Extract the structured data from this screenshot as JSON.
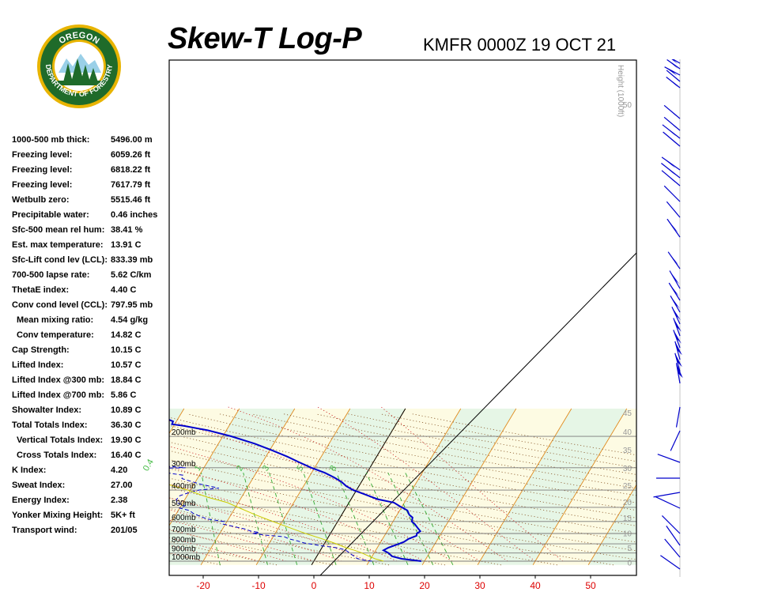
{
  "header": {
    "title": "Skew-T Log-P",
    "station_time": "KMFR 0000Z 19 OCT 21"
  },
  "logo": {
    "top_text": "OREGON",
    "ring_text": "DEPARTMENT OF FORESTRY",
    "colors": {
      "ring": "#1f6b2a",
      "gold": "#e8b400"
    }
  },
  "stats": [
    {
      "label": "1000-500 mb thick:",
      "value": "5496.00 m"
    },
    {
      "label": "Freezing level:",
      "value": "6059.26 ft"
    },
    {
      "label": "Freezing level:",
      "value": "6818.22 ft"
    },
    {
      "label": "Freezing level:",
      "value": "7617.79 ft"
    },
    {
      "label": "Wetbulb zero:",
      "value": "5515.46 ft"
    },
    {
      "label": "Precipitable water:",
      "value": "0.46 inches"
    },
    {
      "label": "Sfc-500 mean rel hum:",
      "value": "38.41 %"
    },
    {
      "label": "Est. max temperature:",
      "value": "13.91 C"
    },
    {
      "label": "Sfc-Lift cond lev (LCL):",
      "value": "833.39 mb"
    },
    {
      "label": "700-500 lapse rate:",
      "value": "5.62 C/km"
    },
    {
      "label": "ThetaE index:",
      "value": "4.40 C"
    },
    {
      "label": "Conv cond level (CCL):",
      "value": "797.95 mb"
    },
    {
      "label": "Mean mixing ratio:",
      "value": "4.54 g/kg",
      "indent": true
    },
    {
      "label": "Conv temperature:",
      "value": "14.82 C",
      "indent": true
    },
    {
      "label": "Cap Strength:",
      "value": "10.15 C"
    },
    {
      "label": "Lifted Index:",
      "value": "10.57 C"
    },
    {
      "label": "Lifted Index @300 mb:",
      "value": "18.84 C"
    },
    {
      "label": "Lifted Index @700 mb:",
      "value": "5.86 C"
    },
    {
      "label": "Showalter Index:",
      "value": "10.89 C"
    },
    {
      "label": "Total Totals Index:",
      "value": "36.30 C"
    },
    {
      "label": "Vertical Totals Index:",
      "value": "19.90 C",
      "indent": true
    },
    {
      "label": "Cross Totals Index:",
      "value": "16.40 C",
      "indent": true
    },
    {
      "label": "K Index:",
      "value": "4.20"
    },
    {
      "label": "Sweat Index:",
      "value": "27.00"
    },
    {
      "label": "Energy Index:",
      "value": "2.38"
    },
    {
      "label": "Yonker Mixing Height:",
      "value": "5K+ ft"
    },
    {
      "label": "Transport wind:",
      "value": "201/05"
    }
  ],
  "chart_data": {
    "type": "line",
    "x_ticks": [
      -20,
      -10,
      0,
      10,
      20,
      30,
      40,
      50
    ],
    "xlim": [
      -27,
      58
    ],
    "ylim_mb": [
      1050,
      140
    ],
    "pressure_labels": [
      {
        "p": 200,
        "label": "200mb"
      },
      {
        "p": 300,
        "label": "300mb"
      },
      {
        "p": 400,
        "label": "400mb"
      },
      {
        "p": 500,
        "label": "500mb"
      },
      {
        "p": 600,
        "label": "600mb"
      },
      {
        "p": 700,
        "label": "700mb"
      },
      {
        "p": 800,
        "label": "800mb"
      },
      {
        "p": 900,
        "label": "900mb"
      },
      {
        "p": 1000,
        "label": "1000mb"
      }
    ],
    "height_axis": {
      "label": "Height (1000ft)",
      "ticks": [
        {
          "p": 1013,
          "label": "0"
        },
        {
          "p": 843,
          "label": "5"
        },
        {
          "p": 697,
          "label": "10"
        },
        {
          "p": 572,
          "label": "15"
        },
        {
          "p": 466,
          "label": "20"
        },
        {
          "p": 376,
          "label": "25"
        },
        {
          "p": 301,
          "label": "30"
        },
        {
          "p": 238,
          "label": "35"
        },
        {
          "p": 188,
          "label": "40"
        },
        {
          "p": 147,
          "label": "45"
        }
      ],
      "extra_ticks": [
        "50"
      ]
    },
    "mixing_ratio_labels": [
      "0.4",
      "1",
      "2",
      "3",
      "5",
      "8"
    ],
    "series": [
      {
        "role": "temperature",
        "color": "#0000cc",
        "points": [
          [
            1000,
            19.4
          ],
          [
            970,
            15.6
          ],
          [
            940,
            13.6
          ],
          [
            900,
            12.6
          ],
          [
            870,
            11.4
          ],
          [
            840,
            12.0
          ],
          [
            800,
            13.5
          ],
          [
            780,
            14.2
          ],
          [
            750,
            14.7
          ],
          [
            720,
            15.8
          ],
          [
            700,
            15.6
          ],
          [
            680,
            16.0
          ],
          [
            650,
            15.1
          ],
          [
            620,
            14.2
          ],
          [
            600,
            13.4
          ],
          [
            570,
            13.1
          ],
          [
            550,
            12.2
          ],
          [
            520,
            11.4
          ],
          [
            505,
            10.4
          ],
          [
            490,
            9.4
          ],
          [
            470,
            8.1
          ],
          [
            450,
            4.8
          ],
          [
            420,
            1.7
          ],
          [
            400,
            -0.6
          ],
          [
            380,
            -2.3
          ],
          [
            360,
            -3.6
          ],
          [
            340,
            -5.4
          ],
          [
            320,
            -7.6
          ],
          [
            300,
            -10.6
          ],
          [
            280,
            -13.3
          ],
          [
            260,
            -16.1
          ],
          [
            240,
            -19.5
          ],
          [
            220,
            -23.4
          ],
          [
            200,
            -28.5
          ],
          [
            185,
            -33.4
          ],
          [
            175,
            -38.1
          ],
          [
            171,
            -40.5
          ],
          [
            165,
            -40.6
          ],
          [
            158,
            -42.4
          ],
          [
            150,
            -43.5
          ],
          [
            146,
            -43.2
          ]
        ]
      },
      {
        "role": "dewpoint",
        "color": "#0000cc",
        "points": [
          [
            1000,
            10.5
          ],
          [
            990,
            9.3
          ],
          [
            975,
            8.0
          ],
          [
            960,
            7.3
          ],
          [
            940,
            6.8
          ],
          [
            910,
            5.8
          ],
          [
            880,
            5.0
          ],
          [
            860,
            4.1
          ],
          [
            840,
            2.5
          ],
          [
            820,
            -0.4
          ],
          [
            810,
            -1.5
          ],
          [
            790,
            -3.8
          ],
          [
            770,
            -5.2
          ],
          [
            750,
            -6.9
          ],
          [
            730,
            -8.0
          ],
          [
            715,
            -11.5
          ],
          [
            700,
            -14.1
          ],
          [
            690,
            -13.0
          ],
          [
            680,
            -14.6
          ],
          [
            660,
            -16.0
          ],
          [
            640,
            -18.2
          ],
          [
            620,
            -20.4
          ],
          [
            600,
            -20.5
          ],
          [
            580,
            -23.9
          ],
          [
            560,
            -25.5
          ],
          [
            540,
            -27.0
          ],
          [
            520,
            -28.0
          ],
          [
            505,
            -30.0
          ],
          [
            490,
            -29.3
          ],
          [
            470,
            -31.2
          ],
          [
            450,
            -31.5
          ],
          [
            430,
            -31.3
          ],
          [
            420,
            -30.6
          ],
          [
            400,
            -28.5
          ],
          [
            390,
            -25.1
          ],
          [
            370,
            -29.0
          ],
          [
            345,
            -32.8
          ],
          [
            330,
            -33.0
          ],
          [
            318,
            -36.9
          ],
          [
            303,
            -39.4
          ],
          [
            300,
            -33.3
          ],
          [
            290,
            -39.6
          ],
          [
            270,
            -38.2
          ],
          [
            255,
            -38.0
          ],
          [
            242,
            -39.2
          ],
          [
            220,
            -43.7
          ],
          [
            190,
            -51.1
          ],
          [
            175,
            -50.6
          ],
          [
            158,
            -57.1
          ],
          [
            150,
            -59.5
          ],
          [
            135,
            -61.0
          ],
          [
            123,
            -65.0
          ],
          [
            110,
            -67.0
          ]
        ]
      },
      {
        "role": "wetbulb",
        "color": "#cccc00",
        "points": [
          [
            1000,
            12.6
          ],
          [
            970,
            10.8
          ],
          [
            940,
            9.5
          ],
          [
            900,
            7.8
          ],
          [
            870,
            6.2
          ],
          [
            840,
            4.3
          ],
          [
            800,
            2.2
          ],
          [
            780,
            1.0
          ],
          [
            750,
            -0.9
          ],
          [
            700,
            -4.5
          ],
          [
            650,
            -8.0
          ],
          [
            600,
            -11.7
          ],
          [
            550,
            -15.6
          ],
          [
            500,
            -19.5
          ],
          [
            470,
            -22.0
          ],
          [
            440,
            -26.0
          ],
          [
            400,
            -30.5
          ],
          [
            360,
            -36.5
          ],
          [
            330,
            -40.0
          ],
          [
            300,
            -44.5
          ],
          [
            280,
            -47.0
          ],
          [
            260,
            -49.0
          ]
        ]
      }
    ]
  }
}
